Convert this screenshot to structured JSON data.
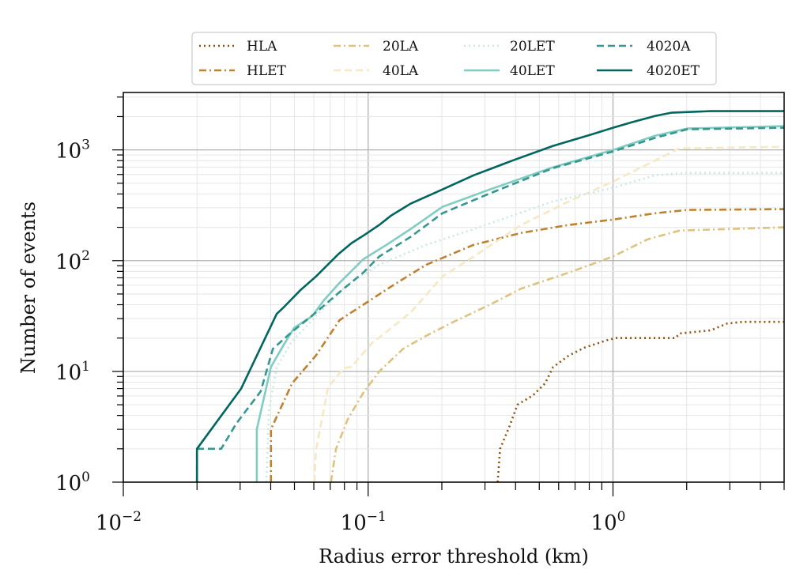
{
  "chart_data": {
    "type": "line",
    "title": "",
    "xlabel": "Radius error threshold (km)",
    "ylabel": "Number of events",
    "xscale": "log",
    "yscale": "log",
    "xlim": [
      0.01,
      5
    ],
    "ylim": [
      1,
      3300
    ],
    "grid": true,
    "legend_placement": "top-center, above plot",
    "x_ticks": [
      {
        "base": "10",
        "exp": "−2",
        "value": 0.01
      },
      {
        "base": "10",
        "exp": "−1",
        "value": 0.1
      },
      {
        "base": "10",
        "exp": "0",
        "value": 1
      }
    ],
    "y_ticks": [
      {
        "base": "10",
        "exp": "0",
        "value": 1
      },
      {
        "base": "10",
        "exp": "1",
        "value": 10
      },
      {
        "base": "10",
        "exp": "2",
        "value": 100
      },
      {
        "base": "10",
        "exp": "3",
        "value": 1000
      }
    ],
    "series": [
      {
        "name": "HLA",
        "color": "#8c510a",
        "dash": "dotted",
        "points": [
          [
            0.338,
            1
          ],
          [
            0.346,
            2
          ],
          [
            0.378,
            3.2
          ],
          [
            0.407,
            5
          ],
          [
            0.472,
            6.1
          ],
          [
            0.528,
            7.8
          ],
          [
            0.569,
            10.9
          ],
          [
            0.66,
            13.9
          ],
          [
            0.765,
            16.4
          ],
          [
            0.956,
            19.3
          ],
          [
            1.03,
            20
          ],
          [
            1.8,
            20
          ],
          [
            1.87,
            22
          ],
          [
            2.51,
            23.5
          ],
          [
            2.92,
            27
          ],
          [
            3.38,
            28
          ],
          [
            5,
            28
          ]
        ]
      },
      {
        "name": "HLET",
        "color": "#bf812d",
        "dash": "dashdot",
        "points": [
          [
            0.0401,
            1
          ],
          [
            0.0401,
            3
          ],
          [
            0.0489,
            7.8
          ],
          [
            0.0612,
            13.9
          ],
          [
            0.0764,
            29
          ],
          [
            0.0955,
            40
          ],
          [
            0.128,
            61
          ],
          [
            0.173,
            92
          ],
          [
            0.27,
            139
          ],
          [
            0.422,
            178
          ],
          [
            0.66,
            210
          ],
          [
            1,
            235
          ],
          [
            1.49,
            268
          ],
          [
            2.01,
            287
          ],
          [
            5,
            292
          ]
        ]
      },
      {
        "name": "20LA",
        "color": "#dfc27d",
        "dash": "dashdot",
        "points": [
          [
            0.0705,
            1
          ],
          [
            0.0739,
            2
          ],
          [
            0.0826,
            3.7
          ],
          [
            0.0955,
            6.4
          ],
          [
            0.111,
            10
          ],
          [
            0.139,
            16
          ],
          [
            0.173,
            21
          ],
          [
            0.216,
            27
          ],
          [
            0.314,
            40
          ],
          [
            0.422,
            56
          ],
          [
            0.66,
            78
          ],
          [
            1,
            109
          ],
          [
            1.387,
            156
          ],
          [
            1.87,
            187
          ],
          [
            5,
            200
          ]
        ]
      },
      {
        "name": "40LA",
        "color": "#f6e8c3",
        "dash": "dashed",
        "points": [
          [
            0.0604,
            1
          ],
          [
            0.0612,
            1.93
          ],
          [
            0.0686,
            7.2
          ],
          [
            0.0794,
            10.7
          ],
          [
            0.0855,
            11
          ],
          [
            0.103,
            17.8
          ],
          [
            0.119,
            22.8
          ],
          [
            0.149,
            34
          ],
          [
            0.201,
            72
          ],
          [
            0.27,
            109
          ],
          [
            0.422,
            210
          ],
          [
            0.66,
            343
          ],
          [
            1,
            518
          ],
          [
            1.387,
            743
          ],
          [
            1.87,
            1033
          ],
          [
            5,
            1067
          ]
        ]
      },
      {
        "name": "20LET",
        "color": "#c7eae5",
        "dash": "dotted",
        "points": [
          [
            0.0384,
            1
          ],
          [
            0.0393,
            4.4
          ],
          [
            0.0423,
            10.9
          ],
          [
            0.0489,
            18.7
          ],
          [
            0.0612,
            31.6
          ],
          [
            0.0826,
            61
          ],
          [
            0.111,
            92
          ],
          [
            0.173,
            139
          ],
          [
            0.27,
            193
          ],
          [
            0.569,
            343
          ],
          [
            1,
            454
          ],
          [
            1.49,
            591
          ],
          [
            2.01,
            620
          ],
          [
            5,
            620
          ]
        ]
      },
      {
        "name": "40LET",
        "color": "#80cdc1",
        "dash": "solid",
        "points": [
          [
            0.0351,
            1
          ],
          [
            0.0351,
            3
          ],
          [
            0.0401,
            11
          ],
          [
            0.0455,
            17.8
          ],
          [
            0.0498,
            24.7
          ],
          [
            0.0591,
            31.6
          ],
          [
            0.066,
            44
          ],
          [
            0.0764,
            63
          ],
          [
            0.0955,
            103
          ],
          [
            0.119,
            139
          ],
          [
            0.149,
            193
          ],
          [
            0.201,
            306
          ],
          [
            0.314,
            439
          ],
          [
            0.569,
            697
          ],
          [
            1,
            1000
          ],
          [
            1.49,
            1345
          ],
          [
            2.01,
            1560
          ],
          [
            5,
            1638
          ]
        ]
      },
      {
        "name": "4020A",
        "color": "#35978f",
        "dash": "dashed",
        "points": [
          [
            0.02,
            1
          ],
          [
            0.02,
            2
          ],
          [
            0.0251,
            2
          ],
          [
            0.029,
            3.4
          ],
          [
            0.0364,
            6.6
          ],
          [
            0.0408,
            16
          ],
          [
            0.0489,
            22.8
          ],
          [
            0.0612,
            34
          ],
          [
            0.0764,
            52
          ],
          [
            0.0955,
            78
          ],
          [
            0.111,
            109
          ],
          [
            0.149,
            164
          ],
          [
            0.201,
            268
          ],
          [
            0.314,
            405
          ],
          [
            0.569,
            685
          ],
          [
            1,
            968
          ],
          [
            1.49,
            1288
          ],
          [
            2.01,
            1535
          ],
          [
            5,
            1585
          ]
        ]
      },
      {
        "name": "4020ET",
        "color": "#01665e",
        "dash": "solid",
        "points": [
          [
            0.02,
            1
          ],
          [
            0.02,
            2
          ],
          [
            0.0303,
            7
          ],
          [
            0.0423,
            33
          ],
          [
            0.0455,
            38.5
          ],
          [
            0.0528,
            54
          ],
          [
            0.0612,
            72
          ],
          [
            0.0754,
            114
          ],
          [
            0.0855,
            144
          ],
          [
            0.097,
            172
          ],
          [
            0.111,
            210
          ],
          [
            0.124,
            255
          ],
          [
            0.149,
            327
          ],
          [
            0.201,
            439
          ],
          [
            0.27,
            591
          ],
          [
            0.392,
            807
          ],
          [
            0.569,
            1086
          ],
          [
            0.824,
            1389
          ],
          [
            1,
            1585
          ],
          [
            1.195,
            1778
          ],
          [
            1.49,
            2028
          ],
          [
            1.73,
            2167
          ],
          [
            2.51,
            2239
          ],
          [
            5,
            2240
          ]
        ]
      }
    ]
  }
}
